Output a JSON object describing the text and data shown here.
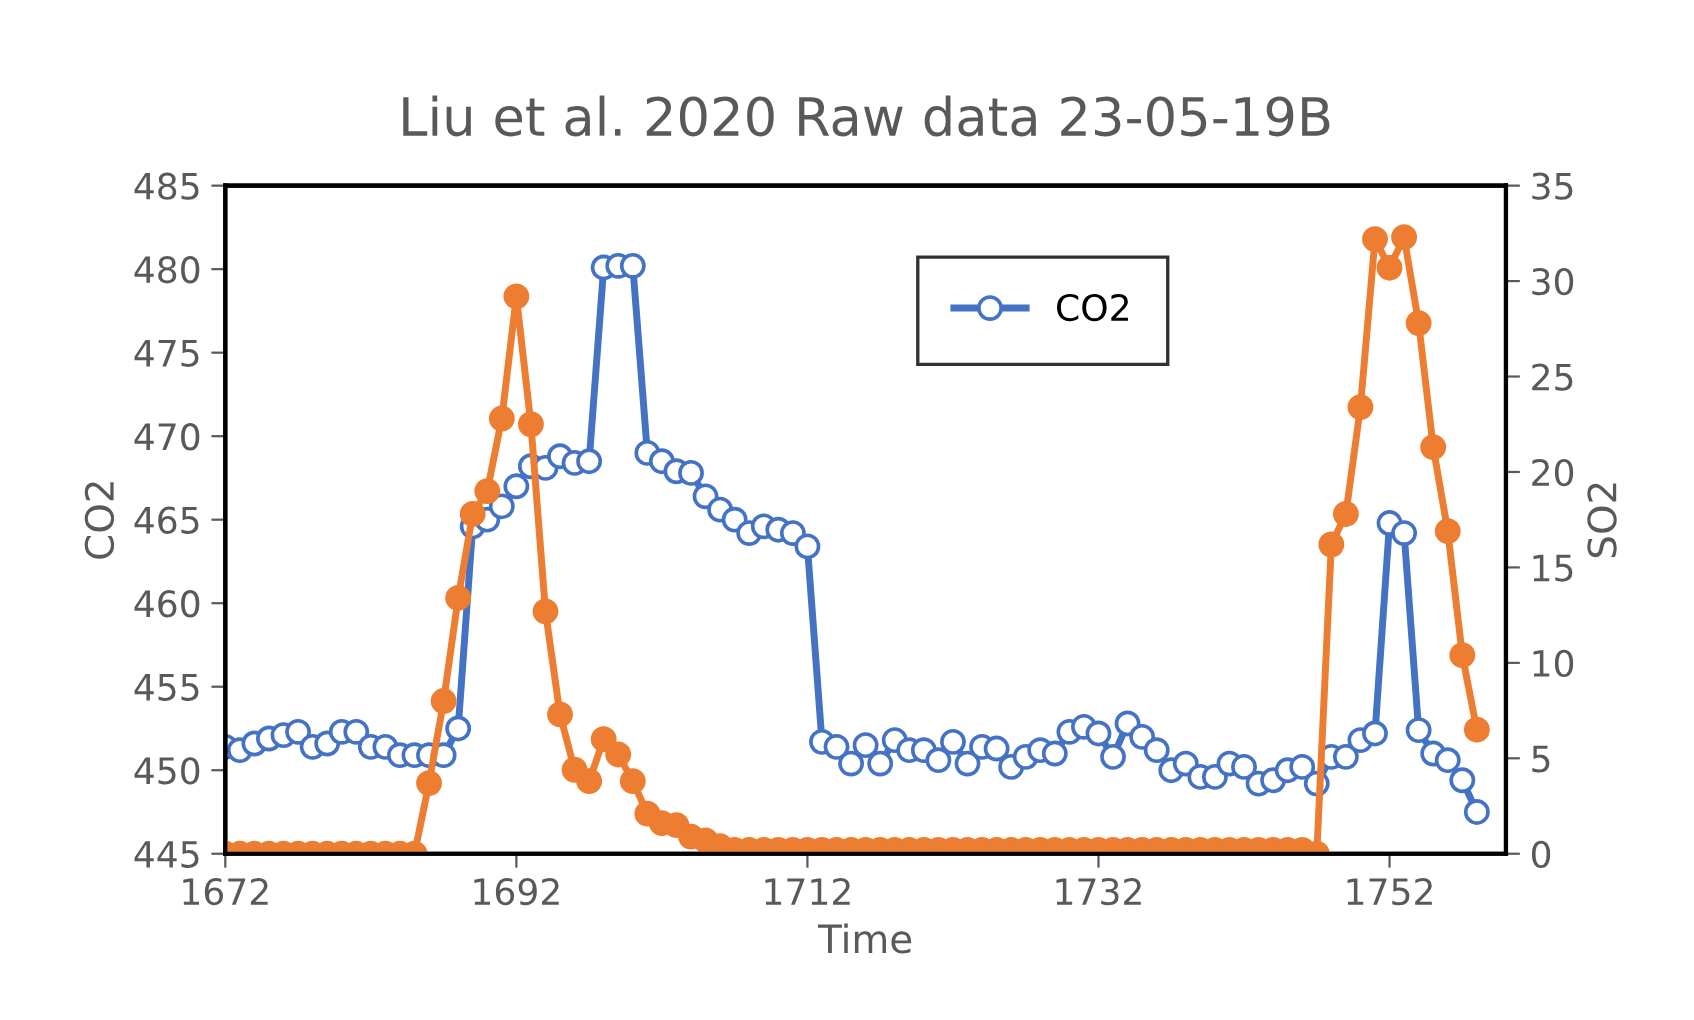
{
  "chart_data": {
    "type": "line",
    "title": "Liu et al. 2020 Raw data 23-05-19B",
    "xlabel": "Time",
    "ylabel": "CO2",
    "y2label": "SO2",
    "x": [
      1672,
      1673,
      1674,
      1675,
      1676,
      1677,
      1678,
      1679,
      1680,
      1681,
      1682,
      1683,
      1684,
      1685,
      1686,
      1687,
      1688,
      1689,
      1690,
      1691,
      1692,
      1693,
      1694,
      1695,
      1696,
      1697,
      1698,
      1699,
      1700,
      1701,
      1702,
      1703,
      1704,
      1705,
      1706,
      1707,
      1708,
      1709,
      1710,
      1711,
      1712,
      1713,
      1714,
      1715,
      1716,
      1717,
      1718,
      1719,
      1720,
      1721,
      1722,
      1723,
      1724,
      1725,
      1726,
      1727,
      1728,
      1729,
      1730,
      1731,
      1732,
      1733,
      1734,
      1735,
      1736,
      1737,
      1738,
      1739,
      1740,
      1741,
      1742,
      1743,
      1744,
      1745,
      1746,
      1747,
      1748,
      1749,
      1750,
      1751,
      1752,
      1753,
      1754,
      1755,
      1756,
      1757,
      1758
    ],
    "series": [
      {
        "name": "CO2",
        "color": "#4472c4",
        "marker": "circle",
        "values": [
          451.4,
          451.2,
          451.6,
          451.9,
          452.1,
          452.3,
          451.4,
          451.6,
          452.3,
          452.3,
          451.4,
          451.4,
          450.9,
          450.9,
          450.9,
          450.9,
          452.5,
          464.6,
          465.0,
          465.8,
          467.0,
          468.2,
          468.1,
          468.8,
          468.4,
          468.5,
          480.1,
          480.2,
          480.2,
          469.0,
          468.5,
          467.9,
          467.8,
          466.4,
          465.6,
          465.0,
          464.2,
          464.6,
          464.4,
          464.2,
          463.4,
          451.7,
          451.4,
          450.4,
          451.5,
          450.4,
          451.8,
          451.2,
          451.2,
          450.6,
          451.7,
          450.4,
          451.4,
          451.3,
          450.2,
          450.8,
          451.2,
          451.0,
          452.3,
          452.6,
          452.2,
          450.8,
          452.8,
          452.0,
          451.2,
          450.0,
          450.4,
          449.6,
          449.6,
          450.4,
          450.2,
          449.2,
          449.4,
          450.0,
          450.2,
          449.2,
          450.8,
          450.8,
          451.8,
          452.2,
          464.8,
          464.2,
          452.4,
          451.0,
          450.6,
          449.4,
          447.5
        ]
      },
      {
        "axis": "y2",
        "color": "#ed7d31",
        "marker": "circle",
        "values": [
          0,
          0,
          0,
          0,
          0,
          0,
          0,
          0,
          0,
          0,
          0,
          0,
          0,
          0,
          3.7,
          8.0,
          13.4,
          17.8,
          19.0,
          22.8,
          29.2,
          22.5,
          12.7,
          7.3,
          4.4,
          3.8,
          6.0,
          5.2,
          3.8,
          2.1,
          1.6,
          1.5,
          0.9,
          0.7,
          0.4,
          0.2,
          0.2,
          0.2,
          0.2,
          0.2,
          0.2,
          0.2,
          0.2,
          0.2,
          0.2,
          0.2,
          0.2,
          0.2,
          0.2,
          0.2,
          0.2,
          0.2,
          0.2,
          0.2,
          0.2,
          0.2,
          0.2,
          0.2,
          0.2,
          0.2,
          0.2,
          0.2,
          0.2,
          0.2,
          0.2,
          0.2,
          0.2,
          0.2,
          0.2,
          0.2,
          0.2,
          0.2,
          0.2,
          0.2,
          0.2,
          0,
          16.2,
          17.8,
          23.4,
          32.2,
          30.7,
          32.3,
          27.8,
          21.3,
          16.9,
          10.4,
          6.5
        ]
      }
    ],
    "xlim": [
      1672,
      1760
    ],
    "xticks": [
      1672,
      1692,
      1712,
      1732,
      1752
    ],
    "ylim": [
      445,
      485
    ],
    "yticks": [
      445,
      450,
      455,
      460,
      465,
      470,
      475,
      480,
      485
    ],
    "y2lim": [
      0,
      35
    ],
    "y2ticks": [
      0,
      5,
      10,
      15,
      20,
      25,
      30,
      35
    ],
    "grid": false,
    "legend": "top right",
    "line_style": "solid"
  }
}
